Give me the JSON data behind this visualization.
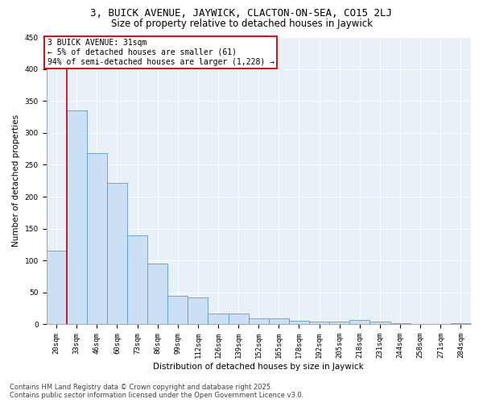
{
  "title1": "3, BUICK AVENUE, JAYWICK, CLACTON-ON-SEA, CO15 2LJ",
  "title2": "Size of property relative to detached houses in Jaywick",
  "xlabel": "Distribution of detached houses by size in Jaywick",
  "ylabel": "Number of detached properties",
  "categories": [
    "20sqm",
    "33sqm",
    "46sqm",
    "60sqm",
    "73sqm",
    "86sqm",
    "99sqm",
    "112sqm",
    "126sqm",
    "139sqm",
    "152sqm",
    "165sqm",
    "178sqm",
    "192sqm",
    "205sqm",
    "218sqm",
    "231sqm",
    "244sqm",
    "258sqm",
    "271sqm",
    "284sqm"
  ],
  "values": [
    115,
    335,
    268,
    221,
    140,
    95,
    45,
    42,
    17,
    17,
    10,
    10,
    6,
    5,
    5,
    7,
    5,
    2,
    1,
    1,
    2
  ],
  "bar_color": "#cce0f5",
  "bar_edge_color": "#5b9bd5",
  "annotation_text": "3 BUICK AVENUE: 31sqm\n← 5% of detached houses are smaller (61)\n94% of semi-detached houses are larger (1,228) →",
  "annotation_box_color": "#ffffff",
  "annotation_box_edge": "#cc0000",
  "vline_color": "#cc0000",
  "ylim": [
    0,
    450
  ],
  "yticks": [
    0,
    50,
    100,
    150,
    200,
    250,
    300,
    350,
    400,
    450
  ],
  "background_color": "#e8f0f8",
  "footer_text": "Contains HM Land Registry data © Crown copyright and database right 2025.\nContains public sector information licensed under the Open Government Licence v3.0.",
  "title_fontsize": 9,
  "subtitle_fontsize": 8.5,
  "axis_label_fontsize": 7.5,
  "tick_fontsize": 6.5,
  "annotation_fontsize": 7,
  "footer_fontsize": 6
}
